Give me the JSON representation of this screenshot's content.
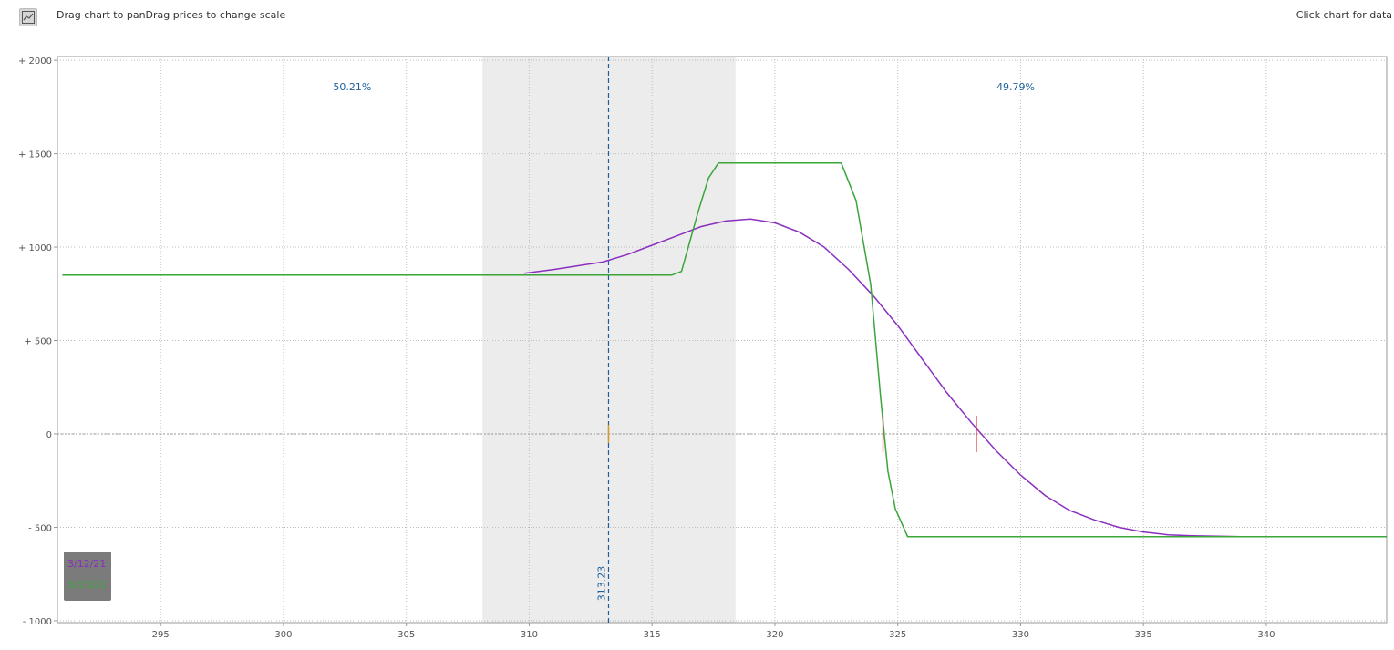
{
  "toolbar": {
    "icon": "line-chart-icon",
    "hint_left": "Drag chart to panDrag prices to change scale",
    "hint_right": "Click chart for data"
  },
  "chart_data": {
    "type": "line",
    "title": "",
    "xlabel": "",
    "ylabel": "",
    "xlim": [
      290.8,
      344.9
    ],
    "ylim": [
      -1010,
      2020
    ],
    "x_ticks": [
      295,
      300,
      305,
      310,
      315,
      320,
      325,
      330,
      335,
      340
    ],
    "x_tick_labels": [
      "295",
      "300",
      "305",
      "310",
      "315",
      "320",
      "325",
      "330",
      "335",
      "340"
    ],
    "y_ticks": [
      2000,
      1500,
      1000,
      500,
      0,
      -500,
      -1000
    ],
    "y_tick_labels": [
      "+ 2000",
      "+ 1500",
      "+ 1000",
      "+ 500",
      "0",
      "- 500",
      "- 1000"
    ],
    "grid": true,
    "shaded_region": {
      "x_start": 308.1,
      "x_end": 318.4,
      "color": "#ececec"
    },
    "current_price": {
      "value": 313.23,
      "label": "313.23",
      "color": "#1f5f9f"
    },
    "percent_labels": [
      {
        "text": "50.21%",
        "x": 302.8,
        "y": 1840
      },
      {
        "text": "49.79%",
        "x": 329.8,
        "y": 1840
      }
    ],
    "break_even_markers": [
      {
        "x": 324.4,
        "series": "3/13/21"
      },
      {
        "x": 328.2,
        "series": "3/12/21"
      }
    ],
    "series": [
      {
        "name": "3/12/21",
        "color": "#8a2fbf",
        "x": [
          309.8,
          311.0,
          312.0,
          313.0,
          314.0,
          315.0,
          316.0,
          317.0,
          318.0,
          319.0,
          320.0,
          321.0,
          322.0,
          323.0,
          324.0,
          325.0,
          326.0,
          327.0,
          328.0,
          329.0,
          330.0,
          331.0,
          332.0,
          333.0,
          334.0,
          335.0,
          336.0,
          337.0,
          338.0,
          339.0,
          340.0
        ],
        "y": [
          860,
          880,
          900,
          920,
          960,
          1010,
          1060,
          1110,
          1140,
          1150,
          1130,
          1080,
          1000,
          880,
          740,
          580,
          400,
          220,
          60,
          -90,
          -220,
          -330,
          -410,
          -460,
          -500,
          -525,
          -540,
          -545,
          -548,
          -550,
          -550
        ]
      },
      {
        "name": "3/13/21",
        "color": "#3aa53a",
        "x": [
          291.0,
          315.8,
          316.2,
          316.9,
          317.3,
          317.7,
          319.5,
          321.5,
          322.7,
          323.3,
          323.9,
          324.3,
          324.6,
          324.9,
          325.4,
          344.9
        ],
        "y": [
          850,
          850,
          870,
          1200,
          1370,
          1450,
          1450,
          1450,
          1450,
          1250,
          800,
          200,
          -200,
          -400,
          -550,
          -550
        ]
      }
    ],
    "legend": {
      "position": "bottom-left",
      "entries": [
        "3/12/21",
        "3/13/21"
      ]
    }
  }
}
